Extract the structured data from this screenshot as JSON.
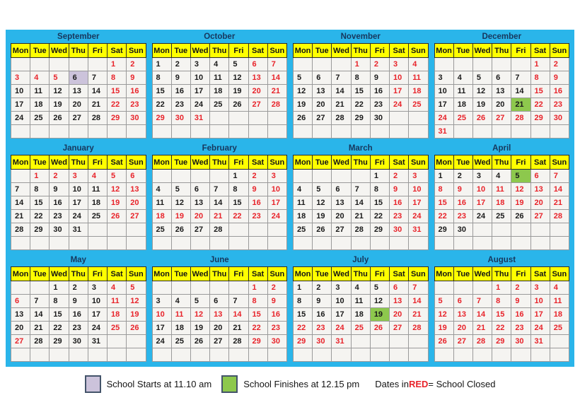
{
  "colors": {
    "panel": "#2ab5ea",
    "header": "#ffff00",
    "closed_red": "#e8232a",
    "start_lavender": "#ccc3db",
    "finish_green": "#8dc84d",
    "title_navy": "#17375d"
  },
  "weekdays": [
    "Mon",
    "Tue",
    "Wed",
    "Thu",
    "Fri",
    "Sat",
    "Sun"
  ],
  "cell_flags": {
    "r": "school-closed-red",
    "s": "school-starts-highlight",
    "f": "school-finishes-highlight"
  },
  "months": [
    {
      "name": "September",
      "rows": [
        [
          "",
          "",
          "",
          "",
          "",
          "1r",
          "2r"
        ],
        [
          "3r",
          "4r",
          "5r",
          "6s",
          "7",
          "8r",
          "9r"
        ],
        [
          "10",
          "11",
          "12",
          "13",
          "14",
          "15r",
          "16r"
        ],
        [
          "17",
          "18",
          "19",
          "20",
          "21",
          "22r",
          "23r"
        ],
        [
          "24",
          "25",
          "26",
          "27",
          "28",
          "29r",
          "30r"
        ],
        [
          "",
          "",
          "",
          "",
          "",
          "",
          ""
        ]
      ]
    },
    {
      "name": "October",
      "rows": [
        [
          "1",
          "2",
          "3",
          "4",
          "5",
          "6r",
          "7r"
        ],
        [
          "8",
          "9",
          "10",
          "11",
          "12",
          "13r",
          "14r"
        ],
        [
          "15",
          "16",
          "17",
          "18",
          "19",
          "20r",
          "21r"
        ],
        [
          "22",
          "23",
          "24",
          "25",
          "26",
          "27r",
          "28r"
        ],
        [
          "29r",
          "30r",
          "31r",
          "",
          "",
          "",
          ""
        ],
        [
          "",
          "",
          "",
          "",
          "",
          "",
          ""
        ]
      ]
    },
    {
      "name": "November",
      "rows": [
        [
          "",
          "",
          "",
          "1r",
          "2r",
          "3r",
          "4r"
        ],
        [
          "5",
          "6",
          "7",
          "8",
          "9",
          "10r",
          "11r"
        ],
        [
          "12",
          "13",
          "14",
          "15",
          "16",
          "17r",
          "18r"
        ],
        [
          "19",
          "20",
          "21",
          "22",
          "23",
          "24r",
          "25r"
        ],
        [
          "26",
          "27",
          "28",
          "29",
          "30",
          "",
          ""
        ],
        [
          "",
          "",
          "",
          "",
          "",
          "",
          ""
        ]
      ]
    },
    {
      "name": "December",
      "rows": [
        [
          "",
          "",
          "",
          "",
          "",
          "1r",
          "2r"
        ],
        [
          "3",
          "4",
          "5",
          "6",
          "7",
          "8r",
          "9r"
        ],
        [
          "10",
          "11",
          "12",
          "13",
          "14",
          "15r",
          "16r"
        ],
        [
          "17",
          "18",
          "19",
          "20",
          "21f",
          "22r",
          "23r"
        ],
        [
          "24r",
          "25r",
          "26r",
          "27r",
          "28r",
          "29r",
          "30r"
        ],
        [
          "31r",
          "",
          "",
          "",
          "",
          "",
          ""
        ]
      ]
    },
    {
      "name": "January",
      "rows": [
        [
          "",
          "1r",
          "2r",
          "3r",
          "4r",
          "5r",
          "6r"
        ],
        [
          "7",
          "8",
          "9",
          "10",
          "11",
          "12r",
          "13r"
        ],
        [
          "14",
          "15",
          "16",
          "17",
          "18",
          "19r",
          "20r"
        ],
        [
          "21",
          "22",
          "23",
          "24",
          "25",
          "26r",
          "27r"
        ],
        [
          "28",
          "29",
          "30",
          "31",
          "",
          "",
          ""
        ],
        [
          "",
          "",
          "",
          "",
          "",
          "",
          ""
        ]
      ]
    },
    {
      "name": "February",
      "rows": [
        [
          "",
          "",
          "",
          "",
          "1",
          "2r",
          "3r"
        ],
        [
          "4",
          "5",
          "6",
          "7",
          "8",
          "9r",
          "10r"
        ],
        [
          "11",
          "12",
          "13",
          "14",
          "15",
          "16r",
          "17r"
        ],
        [
          "18r",
          "19r",
          "20r",
          "21r",
          "22r",
          "23r",
          "24r"
        ],
        [
          "25",
          "26",
          "27",
          "28",
          "",
          "",
          ""
        ],
        [
          "",
          "",
          "",
          "",
          "",
          "",
          ""
        ]
      ]
    },
    {
      "name": "March",
      "rows": [
        [
          "",
          "",
          "",
          "",
          "1",
          "2r",
          "3r"
        ],
        [
          "4",
          "5",
          "6",
          "7",
          "8",
          "9r",
          "10r"
        ],
        [
          "11",
          "12",
          "13",
          "14",
          "15",
          "16r",
          "17r"
        ],
        [
          "18",
          "19",
          "20",
          "21",
          "22",
          "23r",
          "24r"
        ],
        [
          "25",
          "26",
          "27",
          "28",
          "29",
          "30r",
          "31r"
        ],
        [
          "",
          "",
          "",
          "",
          "",
          "",
          ""
        ]
      ]
    },
    {
      "name": "April",
      "rows": [
        [
          "1",
          "2",
          "3",
          "4",
          "5f",
          "6r",
          "7r"
        ],
        [
          "8r",
          "9r",
          "10r",
          "11r",
          "12r",
          "13r",
          "14r"
        ],
        [
          "15r",
          "16r",
          "17r",
          "18r",
          "19r",
          "20r",
          "21r"
        ],
        [
          "22r",
          "23r",
          "24",
          "25",
          "26",
          "27r",
          "28r"
        ],
        [
          "29",
          "30",
          "",
          "",
          "",
          "",
          ""
        ],
        [
          "",
          "",
          "",
          "",
          "",
          "",
          ""
        ]
      ]
    },
    {
      "name": "May",
      "rows": [
        [
          "",
          "",
          "1",
          "2",
          "3",
          "4r",
          "5r"
        ],
        [
          "6r",
          "7",
          "8",
          "9",
          "10",
          "11r",
          "12r"
        ],
        [
          "13",
          "14",
          "15",
          "16",
          "17",
          "18r",
          "19r"
        ],
        [
          "20",
          "21",
          "22",
          "23",
          "24",
          "25r",
          "26r"
        ],
        [
          "27r",
          "28",
          "29",
          "30",
          "31",
          "",
          ""
        ],
        [
          "",
          "",
          "",
          "",
          "",
          "",
          ""
        ]
      ]
    },
    {
      "name": "June",
      "rows": [
        [
          "",
          "",
          "",
          "",
          "",
          "1r",
          "2r"
        ],
        [
          "3",
          "4",
          "5",
          "6",
          "7",
          "8r",
          "9r"
        ],
        [
          "10r",
          "11r",
          "12r",
          "13r",
          "14r",
          "15r",
          "16r"
        ],
        [
          "17",
          "18",
          "19",
          "20",
          "21",
          "22r",
          "23r"
        ],
        [
          "24",
          "25",
          "26",
          "27",
          "28",
          "29r",
          "30r"
        ],
        [
          "",
          "",
          "",
          "",
          "",
          "",
          ""
        ]
      ]
    },
    {
      "name": "July",
      "rows": [
        [
          "1",
          "2",
          "3",
          "4",
          "5",
          "6r",
          "7r"
        ],
        [
          "8",
          "9",
          "10",
          "11",
          "12",
          "13r",
          "14r"
        ],
        [
          "15",
          "16",
          "17",
          "18",
          "19f",
          "20r",
          "21r"
        ],
        [
          "22r",
          "23r",
          "24r",
          "25r",
          "26r",
          "27r",
          "28r"
        ],
        [
          "29r",
          "30r",
          "31r",
          "",
          "",
          "",
          ""
        ],
        [
          "",
          "",
          "",
          "",
          "",
          "",
          ""
        ]
      ]
    },
    {
      "name": "August",
      "rows": [
        [
          "",
          "",
          "",
          "1r",
          "2r",
          "3r",
          "4r"
        ],
        [
          "5r",
          "6r",
          "7r",
          "8r",
          "9r",
          "10r",
          "11r"
        ],
        [
          "12r",
          "13r",
          "14r",
          "15r",
          "16r",
          "17r",
          "18r"
        ],
        [
          "19r",
          "20r",
          "21r",
          "22r",
          "23r",
          "24r",
          "25r"
        ],
        [
          "26r",
          "27r",
          "28r",
          "29r",
          "30r",
          "31r",
          ""
        ],
        [
          "",
          "",
          "",
          "",
          "",
          "",
          ""
        ]
      ]
    }
  ],
  "legend": {
    "start_label": "School Starts at 11.10 am",
    "finish_label": "School Finishes at 12.15 pm",
    "closed_prefix": "Dates in ",
    "closed_red_word": "RED",
    "closed_suffix": " = School Closed"
  }
}
